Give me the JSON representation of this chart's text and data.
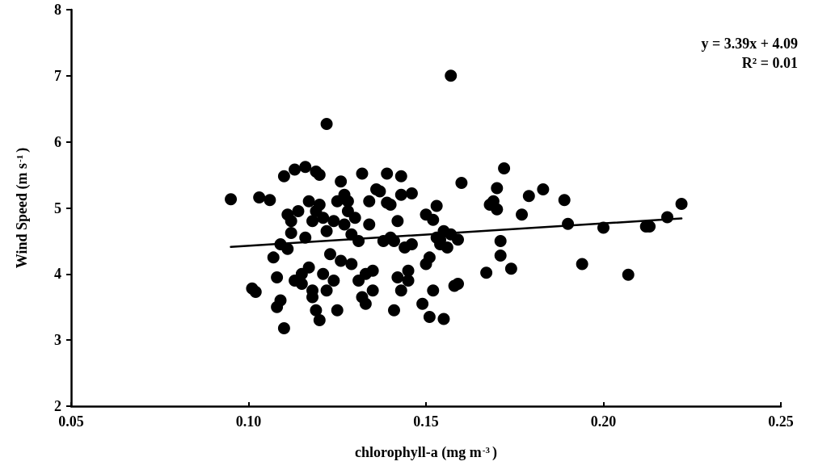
{
  "chart_data": {
    "type": "scatter",
    "xlabel": "chlorophyll-a (mg m$^{-3}$)",
    "ylabel": "Wind Speed (m s$^{-1}$)",
    "annotations": [
      "y = 3.39x + 4.09",
      "R² = 0.01"
    ],
    "xlim": [
      0.05,
      0.25
    ],
    "xticks": [
      {
        "value": 0.05,
        "label": "0.05"
      },
      {
        "value": 0.1,
        "label": "0.10"
      },
      {
        "value": 0.15,
        "label": "0.15"
      },
      {
        "value": 0.2,
        "label": "0.20"
      },
      {
        "value": 0.25,
        "label": "0.25"
      }
    ],
    "ylim": [
      2,
      8
    ],
    "yticks": [
      2,
      3,
      4,
      5,
      6,
      7,
      8
    ],
    "grid": false,
    "marker": "circle",
    "series": [
      {
        "color": "#000000",
        "x": [
          0.095,
          0.101,
          0.102,
          0.103,
          0.106,
          0.107,
          0.108,
          0.108,
          0.109,
          0.11,
          0.109,
          0.11,
          0.111,
          0.112,
          0.113,
          0.112,
          0.111,
          0.113,
          0.114,
          0.115,
          0.115,
          0.116,
          0.116,
          0.117,
          0.117,
          0.118,
          0.118,
          0.118,
          0.119,
          0.119,
          0.119,
          0.12,
          0.12,
          0.12,
          0.121,
          0.121,
          0.122,
          0.122,
          0.122,
          0.123,
          0.124,
          0.124,
          0.125,
          0.125,
          0.126,
          0.126,
          0.127,
          0.127,
          0.128,
          0.128,
          0.129,
          0.129,
          0.13,
          0.131,
          0.131,
          0.132,
          0.132,
          0.133,
          0.133,
          0.134,
          0.134,
          0.135,
          0.135,
          0.136,
          0.137,
          0.138,
          0.139,
          0.139,
          0.14,
          0.14,
          0.141,
          0.141,
          0.142,
          0.142,
          0.143,
          0.143,
          0.143,
          0.144,
          0.145,
          0.145,
          0.146,
          0.146,
          0.149,
          0.15,
          0.15,
          0.151,
          0.151,
          0.152,
          0.152,
          0.153,
          0.153,
          0.154,
          0.154,
          0.155,
          0.155,
          0.156,
          0.157,
          0.157,
          0.158,
          0.159,
          0.159,
          0.16,
          0.167,
          0.168,
          0.169,
          0.17,
          0.17,
          0.171,
          0.171,
          0.172,
          0.174,
          0.177,
          0.179,
          0.183,
          0.189,
          0.19,
          0.194,
          0.2,
          0.207,
          0.212,
          0.213,
          0.218,
          0.222
        ],
        "values": [
          5.13,
          3.78,
          3.73,
          5.16,
          5.12,
          4.25,
          3.95,
          3.5,
          3.6,
          3.18,
          4.45,
          5.48,
          4.9,
          4.8,
          5.58,
          4.62,
          4.38,
          3.9,
          4.95,
          4.0,
          3.85,
          5.62,
          4.55,
          4.1,
          5.1,
          3.65,
          3.75,
          4.8,
          5.55,
          4.95,
          3.45,
          3.3,
          5.5,
          5.05,
          4.0,
          4.85,
          6.27,
          4.65,
          3.75,
          4.3,
          3.9,
          4.8,
          5.1,
          3.45,
          5.4,
          4.2,
          5.2,
          4.75,
          4.95,
          5.1,
          4.6,
          4.15,
          4.85,
          4.5,
          3.9,
          5.52,
          3.65,
          4.0,
          3.55,
          4.75,
          5.1,
          3.75,
          4.05,
          5.28,
          5.25,
          4.5,
          5.52,
          5.08,
          4.55,
          5.05,
          3.45,
          4.5,
          3.95,
          4.8,
          5.48,
          5.2,
          3.75,
          4.4,
          4.05,
          3.9,
          5.22,
          4.45,
          3.55,
          4.15,
          4.9,
          4.25,
          3.35,
          4.82,
          3.75,
          5.03,
          4.55,
          4.52,
          4.45,
          3.32,
          4.65,
          4.4,
          4.6,
          7.0,
          3.82,
          3.85,
          4.52,
          5.38,
          4.02,
          5.05,
          5.1,
          4.98,
          5.3,
          4.5,
          4.28,
          5.6,
          4.08,
          4.9,
          5.18,
          5.28,
          5.12,
          4.76,
          4.15,
          4.7,
          3.99,
          4.72,
          4.72,
          4.86,
          5.06
        ]
      },
      {
        "type": "line",
        "color": "#000000",
        "marker": "none",
        "x": [
          0.095,
          0.222
        ],
        "values": [
          4.41,
          4.84
        ]
      }
    ]
  }
}
